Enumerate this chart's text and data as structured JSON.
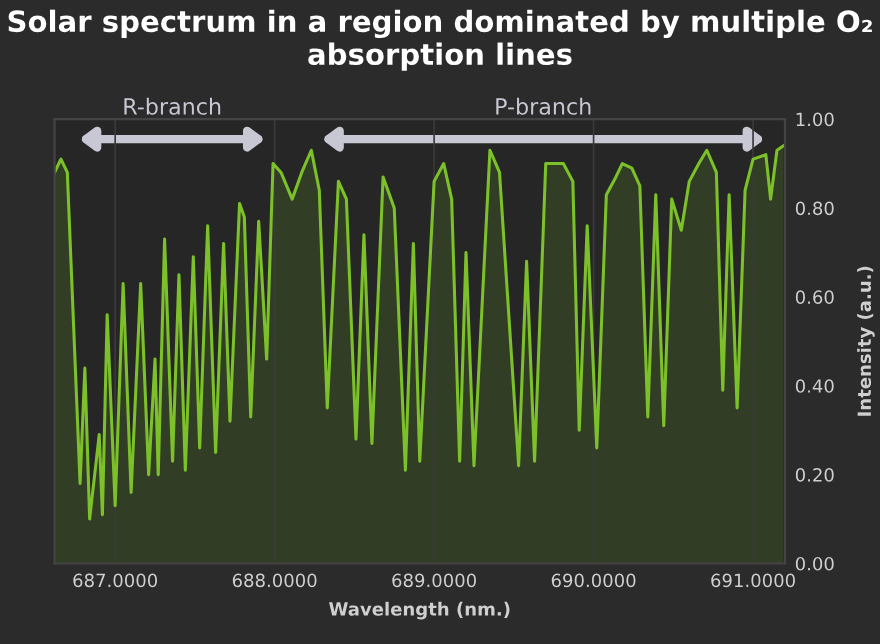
{
  "chart_data": {
    "type": "area",
    "title": "Solar spectrum in a region dominated by multiple O₂ absorption lines",
    "xlabel": "Wavelength (nm.)",
    "ylabel": "Intensity (a.u.)",
    "x": [
      686.62,
      686.66,
      686.7,
      686.78,
      686.81,
      686.84,
      686.9,
      686.92,
      686.95,
      687.0,
      687.05,
      687.1,
      687.16,
      687.21,
      687.25,
      687.27,
      687.31,
      687.36,
      687.4,
      687.44,
      687.49,
      687.53,
      687.58,
      687.63,
      687.68,
      687.72,
      687.78,
      687.81,
      687.85,
      687.9,
      687.95,
      687.99,
      688.04,
      688.11,
      688.17,
      688.23,
      688.28,
      688.33,
      688.4,
      688.45,
      688.51,
      688.56,
      688.61,
      688.68,
      688.75,
      688.82,
      688.87,
      688.91,
      689.0,
      689.06,
      689.11,
      689.16,
      689.2,
      689.25,
      689.35,
      689.41,
      689.53,
      689.58,
      689.63,
      689.7,
      689.81,
      689.87,
      689.91,
      689.96,
      690.02,
      690.08,
      690.14,
      690.18,
      690.24,
      690.29,
      690.34,
      690.39,
      690.44,
      690.49,
      690.55,
      690.6,
      690.66,
      690.71,
      690.77,
      690.81,
      690.85,
      690.9,
      690.95,
      691.0,
      691.08,
      691.11,
      691.15,
      691.19
    ],
    "series": [
      {
        "color": "#7cc12a",
        "values": [
          0.88,
          0.91,
          0.88,
          0.18,
          0.44,
          0.1,
          0.29,
          0.11,
          0.56,
          0.13,
          0.63,
          0.16,
          0.63,
          0.2,
          0.46,
          0.2,
          0.73,
          0.23,
          0.65,
          0.21,
          0.69,
          0.26,
          0.76,
          0.25,
          0.72,
          0.32,
          0.81,
          0.78,
          0.33,
          0.77,
          0.46,
          0.9,
          0.88,
          0.82,
          0.88,
          0.93,
          0.84,
          0.35,
          0.86,
          0.82,
          0.28,
          0.74,
          0.27,
          0.87,
          0.8,
          0.21,
          0.72,
          0.23,
          0.86,
          0.9,
          0.82,
          0.23,
          0.7,
          0.22,
          0.93,
          0.88,
          0.22,
          0.68,
          0.23,
          0.9,
          0.9,
          0.86,
          0.3,
          0.76,
          0.26,
          0.83,
          0.87,
          0.9,
          0.89,
          0.85,
          0.33,
          0.83,
          0.31,
          0.82,
          0.75,
          0.86,
          0.9,
          0.93,
          0.88,
          0.39,
          0.83,
          0.35,
          0.84,
          0.91,
          0.92,
          0.82,
          0.93,
          0.94
        ]
      }
    ],
    "xlim": [
      686.62,
      691.2
    ],
    "ylim": [
      0,
      1.0
    ],
    "xticks": [
      {
        "value": 687,
        "label": "687.0000"
      },
      {
        "value": 688,
        "label": "688.0000"
      },
      {
        "value": 689,
        "label": "689.0000"
      },
      {
        "value": 690,
        "label": "690.0000"
      },
      {
        "value": 691,
        "label": "691.0000"
      }
    ],
    "yticks": [
      {
        "value": 0,
        "label": "0.00"
      },
      {
        "value": 0.2,
        "label": "0.20"
      },
      {
        "value": 0.4,
        "label": "0.40"
      },
      {
        "value": 0.6,
        "label": "0.60"
      },
      {
        "value": 0.8,
        "label": "0.80"
      },
      {
        "value": 1.0,
        "label": "1.00"
      }
    ],
    "annotations": [
      "R-branch",
      "P-branch"
    ],
    "grid": "x",
    "legend": false,
    "marker": "none",
    "line_style": "solid"
  }
}
